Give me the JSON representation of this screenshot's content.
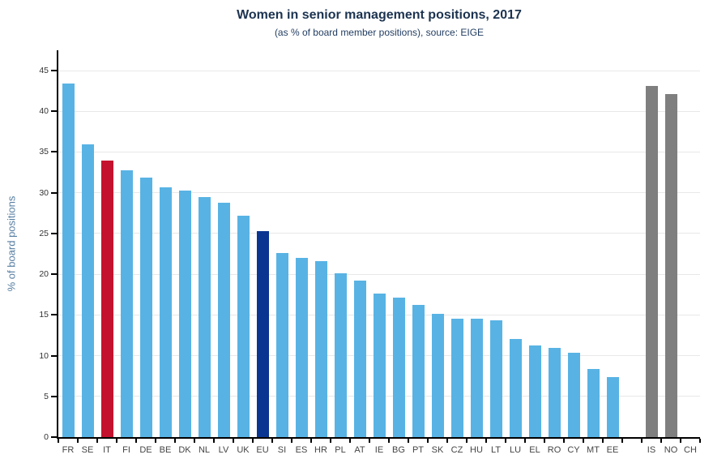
{
  "chart_data": {
    "type": "bar",
    "title": "Women in senior management positions, 2017",
    "subtitle": "(as % of board member positions), source: EIGE",
    "ylabel": "% of board positions",
    "xlabel": "",
    "ylim": [
      0,
      47.5
    ],
    "yticks": [
      0,
      5,
      10,
      15,
      20,
      25,
      30,
      35,
      40,
      45
    ],
    "grid": "horizontal",
    "legend": "none",
    "categories": [
      "FR",
      "SE",
      "IT",
      "FI",
      "DE",
      "BE",
      "DK",
      "NL",
      "LV",
      "UK",
      "EU",
      "SI",
      "ES",
      "HR",
      "PL",
      "AT",
      "IE",
      "BG",
      "PT",
      "SK",
      "CZ",
      "HU",
      "LT",
      "LU",
      "EL",
      "RO",
      "CY",
      "MT",
      "EE",
      "",
      "IS",
      "NO",
      "CH"
    ],
    "values": [
      43.4,
      35.9,
      34.0,
      32.8,
      31.9,
      30.7,
      30.3,
      29.5,
      28.8,
      27.2,
      25.3,
      22.6,
      22.0,
      21.6,
      20.1,
      19.2,
      17.6,
      17.1,
      16.2,
      15.1,
      14.5,
      14.5,
      14.3,
      12.0,
      11.3,
      11.0,
      10.4,
      8.4,
      7.4,
      null,
      43.1,
      42.1,
      null
    ],
    "highlighted_bars": {
      "IT": "red",
      "EU": "darkblue",
      "IS": "gray",
      "NO": "gray",
      "CH": "gray"
    },
    "colors": {
      "default": "#58b3e4",
      "red": "#c4122e",
      "darkblue": "#0a3692",
      "gray": "#7f7f7f",
      "axis": "#000000",
      "grid": "#e8e8e8",
      "title": "#1c3350",
      "ylabel_text": "#567da1",
      "tick_text": "#333333"
    }
  }
}
